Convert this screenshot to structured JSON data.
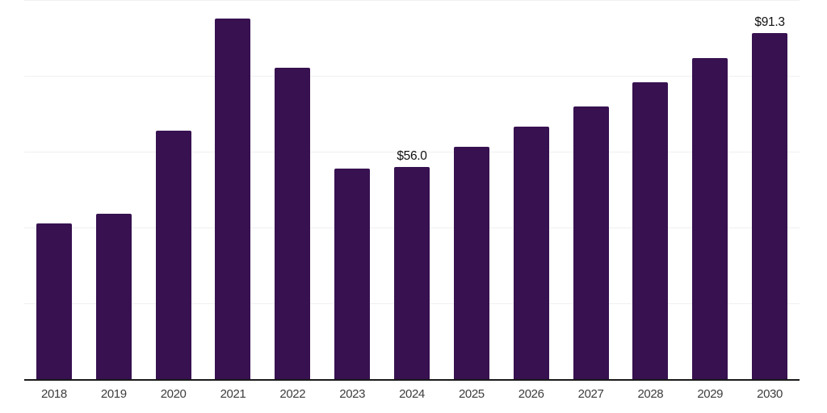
{
  "chart_data": {
    "type": "bar",
    "title": "",
    "xlabel": "",
    "ylabel": "",
    "categories": [
      "2018",
      "2019",
      "2020",
      "2021",
      "2022",
      "2023",
      "2024",
      "2025",
      "2026",
      "2027",
      "2028",
      "2029",
      "2030"
    ],
    "values": [
      41.0,
      43.7,
      65.5,
      95.2,
      82.2,
      55.6,
      56.0,
      61.2,
      66.5,
      71.9,
      78.2,
      84.6,
      91.3
    ],
    "data_labels": [
      "",
      "",
      "",
      "",
      "",
      "",
      "$56.0",
      "",
      "",
      "",
      "",
      "",
      "$91.3"
    ],
    "ylim": [
      0,
      100
    ],
    "gridline_step": 20,
    "grid": "horizontal",
    "legend": "none",
    "y_axis_labels_visible": false,
    "colors": {
      "bar": "#371150",
      "gridline": "#f0f0f0",
      "axis_line": "#1a1a1a",
      "tick_label": "#3d3d3d",
      "data_label": "#111111",
      "background": "#ffffff"
    }
  }
}
